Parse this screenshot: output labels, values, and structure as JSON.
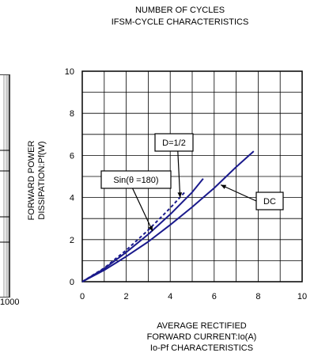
{
  "header": {
    "line1": "NUMBER OF CYCLES",
    "line2": "IFSM-CYCLE CHARACTERISTICS"
  },
  "left_panel": {
    "cut_tick_label": "1000"
  },
  "chart_data": {
    "type": "line",
    "title": "Io-Pf CHARACTERISTICS",
    "ylabel_lines": [
      "FORWARD POWER",
      "DISSIPATION:Pf(W)"
    ],
    "xlabel_lines": [
      "AVERAGE RECTIFIED",
      "FORWARD CURRENT:Io(A)",
      "Io-Pf CHARACTERISTICS"
    ],
    "xlim": [
      0,
      10
    ],
    "ylim": [
      0,
      10
    ],
    "xticks": [
      "0",
      "2",
      "4",
      "6",
      "8",
      "10"
    ],
    "yticks": [
      "0",
      "2",
      "4",
      "6",
      "8",
      "10"
    ],
    "grid": true,
    "series": [
      {
        "name": "DC",
        "style": "solid",
        "color": "#1a1a8c",
        "x": [
          0,
          1,
          2,
          3,
          4,
          5,
          6,
          7,
          7.8
        ],
        "y": [
          0,
          0.55,
          1.2,
          1.9,
          2.7,
          3.55,
          4.45,
          5.45,
          6.2
        ]
      },
      {
        "name": "Sin(θ =180)",
        "style": "solid",
        "color": "#1a1a8c",
        "x": [
          0,
          1,
          2,
          3,
          4,
          5,
          5.5
        ],
        "y": [
          0,
          0.62,
          1.4,
          2.25,
          3.2,
          4.25,
          4.9
        ]
      },
      {
        "name": "D=1/2",
        "style": "dashed",
        "color": "#1a1a8c",
        "x": [
          0,
          1,
          2,
          3,
          4,
          4.7
        ],
        "y": [
          0,
          0.65,
          1.5,
          2.45,
          3.5,
          4.3
        ]
      }
    ],
    "annotations": [
      {
        "text": "D=1/2",
        "target": [
          4.45,
          4.0
        ]
      },
      {
        "text": "Sin(θ =180)",
        "target": [
          3.2,
          2.4
        ]
      },
      {
        "text": "DC",
        "target": [
          6.3,
          4.6
        ]
      }
    ]
  }
}
